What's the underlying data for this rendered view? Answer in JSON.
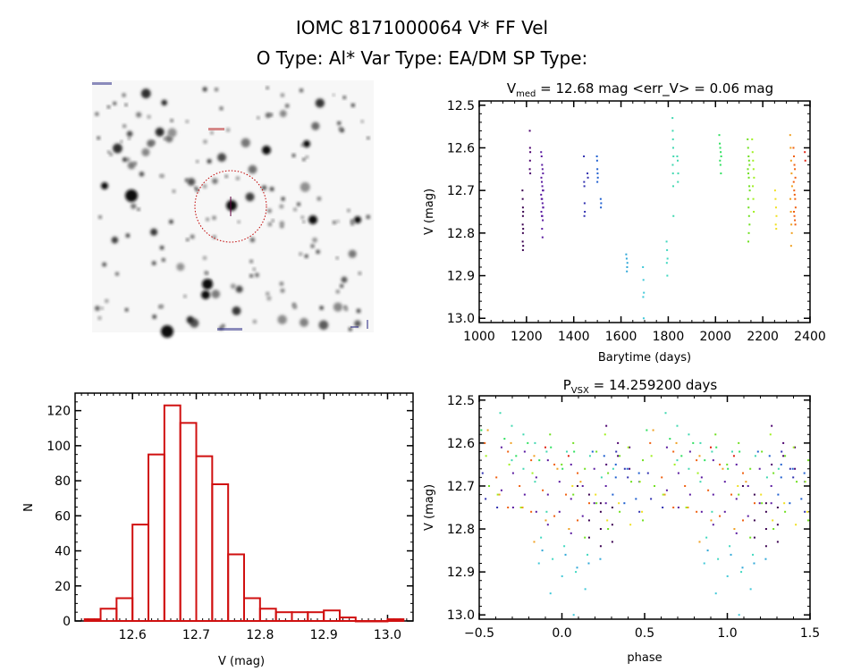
{
  "header": {
    "title": "IOMC 8171000064    V* FF Vel",
    "subtitle": "O Type: Al*  Var Type: EA/DM  SP Type:"
  },
  "chart_data": [
    {
      "type": "image",
      "panel": "finding-chart",
      "description_colors": {
        "circle": "#c00000"
      }
    },
    {
      "type": "scatter",
      "panel": "light-curve",
      "title_main": "V",
      "title_sub": "med",
      "title_rest": " = 12.68 mag <err_V> = 0.06 mag",
      "xlabel": "Barytime (days)",
      "ylabel": "V (mag)",
      "xlim": [
        1000,
        2400
      ],
      "ylim": [
        12.5,
        13.0
      ],
      "y_inverted": true,
      "xticks": [
        "1000",
        "1200",
        "1400",
        "1600",
        "1800",
        "2000",
        "2200",
        "2400"
      ],
      "yticks": [
        "12.5",
        "12.6",
        "12.7",
        "12.8",
        "12.9",
        "13.0"
      ],
      "series": [
        {
          "color": "#3a0050",
          "t": [
            1183,
            1184,
            1185,
            1186,
            1185,
            1184,
            1186,
            1185,
            1184,
            1186,
            1185
          ],
          "v": [
            12.7,
            12.72,
            12.74,
            12.75,
            12.76,
            12.78,
            12.79,
            12.8,
            12.82,
            12.83,
            12.84
          ]
        },
        {
          "color": "#4b006e",
          "t": [
            1214,
            1215,
            1216,
            1215,
            1214,
            1216
          ],
          "v": [
            12.56,
            12.6,
            12.61,
            12.63,
            12.65,
            12.66
          ]
        },
        {
          "color": "#5a1aa0",
          "t": [
            1262,
            1264,
            1266,
            1268,
            1270,
            1263,
            1265,
            1267,
            1269,
            1271,
            1262,
            1264,
            1266,
            1268,
            1270,
            1263,
            1265,
            1267,
            1269,
            1271,
            1266,
            1268
          ],
          "v": [
            12.61,
            12.62,
            12.64,
            12.65,
            12.66,
            12.67,
            12.68,
            12.69,
            12.7,
            12.7,
            12.71,
            12.72,
            12.72,
            12.73,
            12.74,
            12.75,
            12.76,
            12.76,
            12.77,
            12.74,
            12.79,
            12.81
          ]
        },
        {
          "color": "#3030b0",
          "t": [
            1443,
            1444,
            1445,
            1446,
            1447,
            1445,
            1458,
            1460
          ],
          "v": [
            12.62,
            12.68,
            12.69,
            12.73,
            12.75,
            12.76,
            12.66,
            12.67
          ]
        },
        {
          "color": "#2060d0",
          "t": [
            1498,
            1499,
            1500,
            1501,
            1502,
            1500,
            1514,
            1516,
            1515
          ],
          "v": [
            12.62,
            12.63,
            12.65,
            12.66,
            12.67,
            12.68,
            12.72,
            12.73,
            12.74
          ]
        },
        {
          "color": "#30a8d8",
          "t": [
            1622,
            1624,
            1626,
            1625,
            1627
          ],
          "v": [
            12.85,
            12.86,
            12.88,
            12.89,
            12.87
          ]
        },
        {
          "color": "#40c8d8",
          "t": [
            1693,
            1695,
            1697,
            1694,
            1696
          ],
          "v": [
            12.88,
            12.91,
            12.94,
            12.95,
            13.0
          ]
        },
        {
          "color": "#40d8c0",
          "t": [
            1793,
            1795,
            1797,
            1794,
            1796
          ],
          "v": [
            12.82,
            12.84,
            12.86,
            12.87,
            12.9
          ]
        },
        {
          "color": "#40d8b0",
          "t": [
            1818,
            1819,
            1820,
            1821,
            1822,
            1819,
            1820,
            1821,
            1822,
            1838,
            1840,
            1842,
            1841
          ],
          "v": [
            12.53,
            12.56,
            12.58,
            12.6,
            12.62,
            12.64,
            12.66,
            12.69,
            12.76,
            12.62,
            12.63,
            12.66,
            12.68
          ]
        },
        {
          "color": "#30e060",
          "t": [
            2016,
            2018,
            2020,
            2022,
            2024,
            2019,
            2021,
            2023
          ],
          "v": [
            12.57,
            12.59,
            12.6,
            12.61,
            12.62,
            12.63,
            12.64,
            12.66
          ]
        },
        {
          "color": "#70e020",
          "t": [
            2136,
            2138,
            2140,
            2142,
            2144,
            2137,
            2139,
            2141,
            2143,
            2145,
            2138,
            2140,
            2142,
            2144,
            2141,
            2139
          ],
          "v": [
            12.58,
            12.6,
            12.62,
            12.63,
            12.64,
            12.65,
            12.66,
            12.67,
            12.69,
            12.7,
            12.72,
            12.74,
            12.76,
            12.78,
            12.8,
            12.82
          ]
        },
        {
          "color": "#a0f020",
          "t": [
            2155,
            2157,
            2159,
            2161,
            2163,
            2158,
            2160,
            2162
          ],
          "v": [
            12.58,
            12.61,
            12.63,
            12.65,
            12.67,
            12.69,
            12.72,
            12.75
          ]
        },
        {
          "color": "#f0e020",
          "t": [
            2252,
            2254,
            2256,
            2258,
            2255,
            2257
          ],
          "v": [
            12.7,
            12.72,
            12.74,
            12.76,
            12.78,
            12.79
          ]
        },
        {
          "color": "#f0a020",
          "t": [
            2316,
            2318,
            2320,
            2322,
            2324,
            2317,
            2319,
            2321,
            2323,
            2320
          ],
          "v": [
            12.57,
            12.6,
            12.63,
            12.66,
            12.69,
            12.72,
            12.75,
            12.78,
            12.8,
            12.83
          ]
        },
        {
          "color": "#f06010",
          "t": [
            2330,
            2332,
            2334,
            2336,
            2338,
            2331,
            2333,
            2335,
            2337,
            2339,
            2332,
            2334,
            2336,
            2338
          ],
          "v": [
            12.6,
            12.62,
            12.64,
            12.65,
            12.67,
            12.68,
            12.7,
            12.71,
            12.72,
            12.74,
            12.75,
            12.76,
            12.77,
            12.78
          ]
        },
        {
          "color": "#e02010",
          "t": [
            2378,
            2380
          ],
          "v": [
            12.61,
            12.63
          ]
        }
      ]
    },
    {
      "type": "bar",
      "panel": "histogram",
      "xlabel": "V (mag)",
      "ylabel": "N",
      "xlim": [
        12.51,
        13.04
      ],
      "ylim": [
        0,
        130
      ],
      "xticks": [
        "12.6",
        "12.7",
        "12.8",
        "12.9",
        "13.0"
      ],
      "yticks": [
        "0",
        "20",
        "40",
        "60",
        "80",
        "100",
        "120"
      ],
      "bin_width": 0.025,
      "bin_starts": [
        12.525,
        12.55,
        12.575,
        12.6,
        12.625,
        12.65,
        12.675,
        12.7,
        12.725,
        12.75,
        12.775,
        12.8,
        12.825,
        12.85,
        12.875,
        12.9,
        12.925,
        12.95,
        12.975,
        13.0
      ],
      "values": [
        1,
        7,
        13,
        55,
        95,
        123,
        113,
        94,
        78,
        38,
        13,
        7,
        5,
        5,
        5,
        6,
        2,
        0,
        0,
        1
      ],
      "color": "#d01010"
    },
    {
      "type": "scatter",
      "panel": "phased-light-curve",
      "title_main": "P",
      "title_sub": "VSX",
      "title_rest": " = 14.259200 days",
      "period_days": 14.2592,
      "xlabel": "phase",
      "ylabel": "V (mag)",
      "xlim": [
        -0.5,
        1.5
      ],
      "ylim": [
        12.5,
        13.0
      ],
      "y_inverted": true,
      "xticks": [
        "−0.5",
        "0.0",
        "0.5",
        "1.0",
        "1.5"
      ],
      "yticks": [
        "12.5",
        "12.6",
        "12.7",
        "12.8",
        "12.9",
        "13.0"
      ]
    }
  ]
}
